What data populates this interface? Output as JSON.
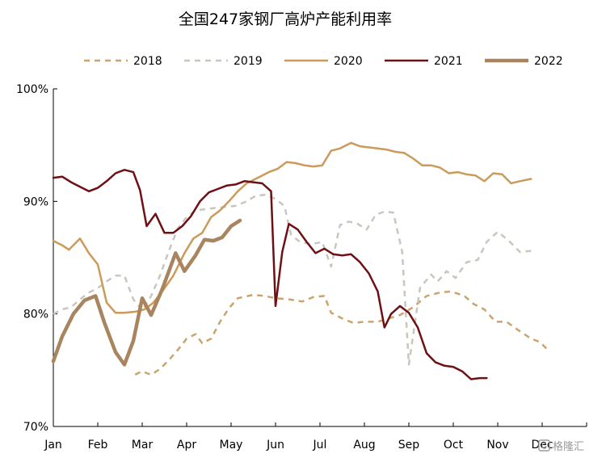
{
  "chart_data": {
    "type": "line",
    "title": "全国247家钢厂高炉产能利用率",
    "xlabel": "",
    "ylabel": "",
    "ylim": [
      70,
      100
    ],
    "xlim": [
      0,
      12
    ],
    "x_tick_labels": [
      "Jan",
      "Feb",
      "Mar",
      "Apr",
      "May",
      "Jun",
      "Jul",
      "Aug",
      "Sep",
      "Oct",
      "Nov",
      "Dec"
    ],
    "y_tick_values": [
      70,
      80,
      90,
      100
    ],
    "y_tick_labels": [
      "70%",
      "80%",
      "90%",
      "100%"
    ],
    "grid": false,
    "legend_position": "top",
    "series": [
      {
        "name": "2018",
        "color": "#c9a46e",
        "dash": "dashed",
        "width": "normal",
        "points": [
          [
            1.84,
            74.6
          ],
          [
            1.99,
            74.9
          ],
          [
            2.2,
            74.6
          ],
          [
            2.4,
            75.1
          ],
          [
            2.6,
            75.9
          ],
          [
            2.8,
            76.8
          ],
          [
            3.0,
            77.8
          ],
          [
            3.2,
            78.2
          ],
          [
            3.35,
            77.4
          ],
          [
            3.55,
            77.8
          ],
          [
            3.75,
            79.3
          ],
          [
            3.95,
            80.5
          ],
          [
            4.15,
            81.4
          ],
          [
            4.5,
            81.7
          ],
          [
            4.75,
            81.6
          ],
          [
            5.0,
            81.4
          ],
          [
            5.3,
            81.3
          ],
          [
            5.6,
            81.1
          ],
          [
            5.85,
            81.5
          ],
          [
            6.1,
            81.6
          ],
          [
            6.25,
            80.1
          ],
          [
            6.5,
            79.6
          ],
          [
            6.75,
            79.2
          ],
          [
            7.0,
            79.3
          ],
          [
            7.3,
            79.3
          ],
          [
            7.55,
            79.6
          ],
          [
            7.8,
            79.9
          ],
          [
            8.1,
            80.6
          ],
          [
            8.4,
            81.6
          ],
          [
            8.7,
            81.9
          ],
          [
            8.95,
            82.0
          ],
          [
            9.25,
            81.6
          ],
          [
            9.45,
            80.9
          ],
          [
            9.7,
            80.4
          ],
          [
            9.95,
            79.3
          ],
          [
            10.2,
            79.3
          ],
          [
            10.45,
            78.6
          ],
          [
            10.75,
            77.8
          ],
          [
            10.95,
            77.5
          ],
          [
            11.15,
            76.7
          ]
        ]
      },
      {
        "name": "2019",
        "color": "#c8c7bd",
        "dash": "dashed",
        "width": "normal",
        "points": [
          [
            0.0,
            80.0
          ],
          [
            0.2,
            80.4
          ],
          [
            0.4,
            80.6
          ],
          [
            0.6,
            81.3
          ],
          [
            0.8,
            81.9
          ],
          [
            1.0,
            82.3
          ],
          [
            1.2,
            82.9
          ],
          [
            1.4,
            83.4
          ],
          [
            1.6,
            83.4
          ],
          [
            1.8,
            81.3
          ],
          [
            2.0,
            80.3
          ],
          [
            2.2,
            81.6
          ],
          [
            2.4,
            83.4
          ],
          [
            2.6,
            85.6
          ],
          [
            2.8,
            87.6
          ],
          [
            3.0,
            88.6
          ],
          [
            3.2,
            89.2
          ],
          [
            3.4,
            89.3
          ],
          [
            3.6,
            89.4
          ],
          [
            3.85,
            89.5
          ],
          [
            4.1,
            89.6
          ],
          [
            4.35,
            90.0
          ],
          [
            4.55,
            90.5
          ],
          [
            4.8,
            90.6
          ],
          [
            5.0,
            90.2
          ],
          [
            5.2,
            89.6
          ],
          [
            5.35,
            87.0
          ],
          [
            5.55,
            86.4
          ],
          [
            5.8,
            86.2
          ],
          [
            6.05,
            86.4
          ],
          [
            6.25,
            84.2
          ],
          [
            6.45,
            87.9
          ],
          [
            6.65,
            88.2
          ],
          [
            6.85,
            88.0
          ],
          [
            7.05,
            87.5
          ],
          [
            7.25,
            88.8
          ],
          [
            7.45,
            89.1
          ],
          [
            7.65,
            89.0
          ],
          [
            7.85,
            85.5
          ],
          [
            8.0,
            75.5
          ],
          [
            8.25,
            82.3
          ],
          [
            8.5,
            83.5
          ],
          [
            8.65,
            82.9
          ],
          [
            8.85,
            83.8
          ],
          [
            9.05,
            83.2
          ],
          [
            9.3,
            84.6
          ],
          [
            9.55,
            84.8
          ],
          [
            9.75,
            86.4
          ],
          [
            10.0,
            87.3
          ],
          [
            10.25,
            86.5
          ],
          [
            10.5,
            85.5
          ],
          [
            10.75,
            85.6
          ]
        ]
      },
      {
        "name": "2020",
        "color": "#cc9a5a",
        "dash": "solid",
        "width": "normal",
        "points": [
          [
            0.0,
            86.5
          ],
          [
            0.2,
            86.1
          ],
          [
            0.35,
            85.7
          ],
          [
            0.6,
            86.7
          ],
          [
            0.8,
            85.4
          ],
          [
            1.0,
            84.4
          ],
          [
            1.2,
            81.0
          ],
          [
            1.4,
            80.1
          ],
          [
            1.6,
            80.1
          ],
          [
            1.85,
            80.2
          ],
          [
            2.05,
            80.4
          ],
          [
            2.25,
            81.0
          ],
          [
            2.45,
            82.0
          ],
          [
            2.7,
            83.4
          ],
          [
            2.95,
            85.4
          ],
          [
            3.15,
            86.7
          ],
          [
            3.35,
            87.2
          ],
          [
            3.55,
            88.6
          ],
          [
            3.75,
            89.2
          ],
          [
            3.95,
            90.0
          ],
          [
            4.15,
            90.9
          ],
          [
            4.35,
            91.6
          ],
          [
            4.6,
            92.1
          ],
          [
            4.85,
            92.6
          ],
          [
            5.05,
            92.9
          ],
          [
            5.25,
            93.5
          ],
          [
            5.45,
            93.4
          ],
          [
            5.65,
            93.2
          ],
          [
            5.85,
            93.1
          ],
          [
            6.05,
            93.2
          ],
          [
            6.25,
            94.5
          ],
          [
            6.45,
            94.7
          ],
          [
            6.7,
            95.2
          ],
          [
            6.9,
            94.9
          ],
          [
            7.1,
            94.8
          ],
          [
            7.3,
            94.7
          ],
          [
            7.5,
            94.6
          ],
          [
            7.7,
            94.4
          ],
          [
            7.9,
            94.3
          ],
          [
            8.1,
            93.8
          ],
          [
            8.3,
            93.2
          ],
          [
            8.5,
            93.2
          ],
          [
            8.7,
            93.0
          ],
          [
            8.9,
            92.5
          ],
          [
            9.1,
            92.6
          ],
          [
            9.3,
            92.4
          ],
          [
            9.5,
            92.3
          ],
          [
            9.7,
            91.8
          ],
          [
            9.9,
            92.5
          ],
          [
            10.1,
            92.4
          ],
          [
            10.3,
            91.6
          ],
          [
            10.5,
            91.8
          ],
          [
            10.75,
            92.0
          ]
        ]
      },
      {
        "name": "2021",
        "color": "#6e1014",
        "dash": "solid",
        "width": "normal",
        "points": [
          [
            0.0,
            92.1
          ],
          [
            0.2,
            92.2
          ],
          [
            0.4,
            91.7
          ],
          [
            0.6,
            91.3
          ],
          [
            0.8,
            90.9
          ],
          [
            1.0,
            91.2
          ],
          [
            1.2,
            91.8
          ],
          [
            1.4,
            92.5
          ],
          [
            1.6,
            92.8
          ],
          [
            1.8,
            92.6
          ],
          [
            1.95,
            91.0
          ],
          [
            2.1,
            87.8
          ],
          [
            2.3,
            88.9
          ],
          [
            2.5,
            87.2
          ],
          [
            2.7,
            87.2
          ],
          [
            2.9,
            87.8
          ],
          [
            3.1,
            88.7
          ],
          [
            3.3,
            90.0
          ],
          [
            3.5,
            90.8
          ],
          [
            3.7,
            91.1
          ],
          [
            3.9,
            91.4
          ],
          [
            4.1,
            91.5
          ],
          [
            4.3,
            91.8
          ],
          [
            4.5,
            91.7
          ],
          [
            4.7,
            91.6
          ],
          [
            4.9,
            90.9
          ],
          [
            5.0,
            80.7
          ],
          [
            5.15,
            85.5
          ],
          [
            5.3,
            88.0
          ],
          [
            5.5,
            87.5
          ],
          [
            5.7,
            86.4
          ],
          [
            5.9,
            85.4
          ],
          [
            6.1,
            85.8
          ],
          [
            6.3,
            85.3
          ],
          [
            6.5,
            85.2
          ],
          [
            6.7,
            85.3
          ],
          [
            6.9,
            84.6
          ],
          [
            7.1,
            83.6
          ],
          [
            7.3,
            82.0
          ],
          [
            7.45,
            78.8
          ],
          [
            7.6,
            80.0
          ],
          [
            7.8,
            80.7
          ],
          [
            8.0,
            80.1
          ],
          [
            8.2,
            78.8
          ],
          [
            8.4,
            76.5
          ],
          [
            8.6,
            75.7
          ],
          [
            8.8,
            75.4
          ],
          [
            9.0,
            75.3
          ],
          [
            9.2,
            74.9
          ],
          [
            9.4,
            74.2
          ],
          [
            9.6,
            74.3
          ],
          [
            9.75,
            74.3
          ]
        ]
      },
      {
        "name": "2022",
        "color": "#a8845f",
        "dash": "solid",
        "width": "thick",
        "points": [
          [
            0.0,
            75.8
          ],
          [
            0.2,
            78.0
          ],
          [
            0.45,
            80.0
          ],
          [
            0.7,
            81.2
          ],
          [
            0.95,
            81.6
          ],
          [
            1.15,
            79.2
          ],
          [
            1.4,
            76.6
          ],
          [
            1.6,
            75.5
          ],
          [
            1.8,
            77.6
          ],
          [
            2.0,
            81.4
          ],
          [
            2.2,
            79.9
          ],
          [
            2.45,
            82.2
          ],
          [
            2.75,
            85.4
          ],
          [
            2.95,
            83.8
          ],
          [
            3.2,
            85.2
          ],
          [
            3.4,
            86.6
          ],
          [
            3.6,
            86.5
          ],
          [
            3.8,
            86.8
          ],
          [
            4.0,
            87.8
          ],
          [
            4.2,
            88.3
          ]
        ]
      }
    ]
  },
  "watermark": {
    "text": "格隆汇",
    "icon": "gelonghui-logo-icon"
  }
}
